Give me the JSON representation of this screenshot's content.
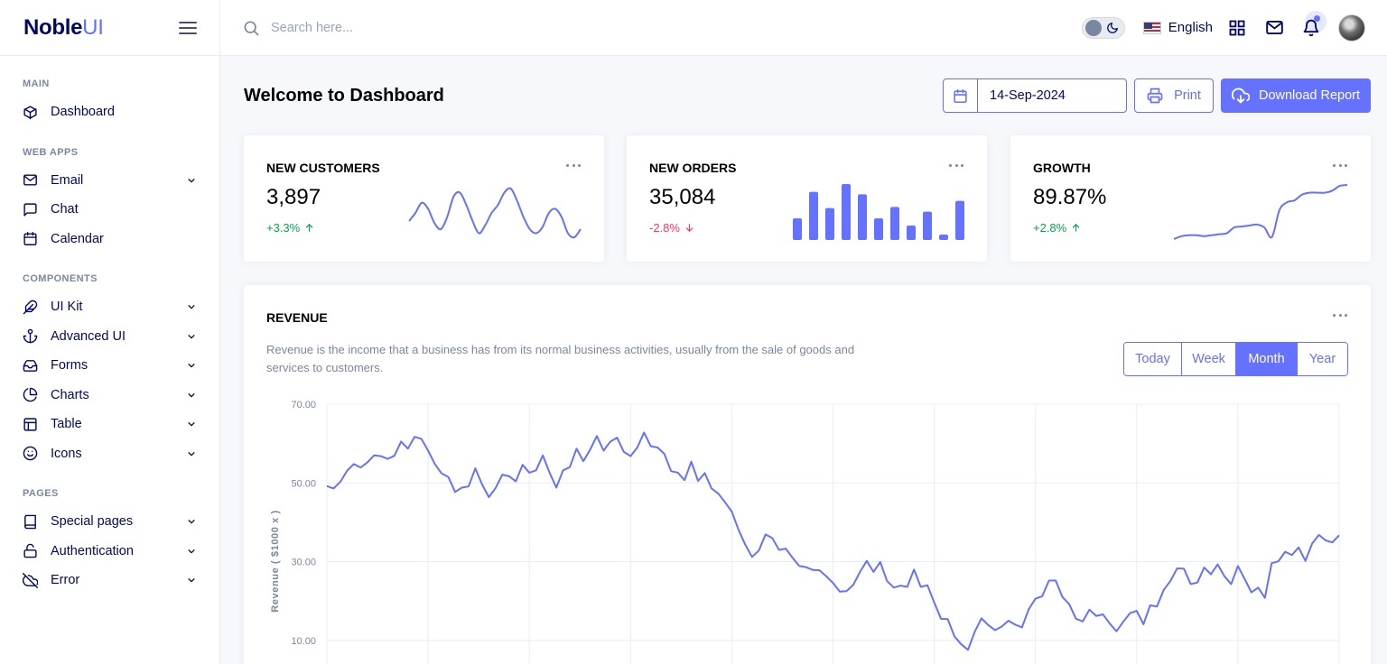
{
  "brand": {
    "name_main": "Noble",
    "name_accent": "UI"
  },
  "sidebar": {
    "categories": [
      {
        "label": "Main",
        "items": [
          {
            "label": "Dashboard",
            "icon": "box-icon",
            "expandable": false
          }
        ]
      },
      {
        "label": "Web Apps",
        "items": [
          {
            "label": "Email",
            "icon": "mail-icon",
            "expandable": true
          },
          {
            "label": "Chat",
            "icon": "chat-icon",
            "expandable": false
          },
          {
            "label": "Calendar",
            "icon": "calendar-icon",
            "expandable": false
          }
        ]
      },
      {
        "label": "Components",
        "items": [
          {
            "label": "UI Kit",
            "icon": "feather-icon",
            "expandable": true
          },
          {
            "label": "Advanced UI",
            "icon": "anchor-icon",
            "expandable": true
          },
          {
            "label": "Forms",
            "icon": "inbox-icon",
            "expandable": true
          },
          {
            "label": "Charts",
            "icon": "pie-chart-icon",
            "expandable": true
          },
          {
            "label": "Table",
            "icon": "layout-icon",
            "expandable": true
          },
          {
            "label": "Icons",
            "icon": "smile-icon",
            "expandable": true
          }
        ]
      },
      {
        "label": "Pages",
        "items": [
          {
            "label": "Special pages",
            "icon": "book-icon",
            "expandable": true
          },
          {
            "label": "Authentication",
            "icon": "unlock-icon",
            "expandable": true
          },
          {
            "label": "Error",
            "icon": "cloud-off-icon",
            "expandable": true
          }
        ]
      }
    ]
  },
  "topbar": {
    "search_placeholder": "Search here...",
    "language": "English",
    "colors": {
      "accent": "#6571ff"
    }
  },
  "header": {
    "title": "Welcome to Dashboard",
    "date_value": "14-Sep-2024",
    "print_label": "Print",
    "download_label": "Download Report"
  },
  "stats": [
    {
      "title": "New Customers",
      "value": "3,897",
      "change": "+3.3%",
      "trend": "up"
    },
    {
      "title": "New Orders",
      "value": "35,084",
      "change": "-2.8%",
      "trend": "down"
    },
    {
      "title": "Growth",
      "value": "89.87%",
      "change": "+2.8%",
      "trend": "up"
    }
  ],
  "revenue": {
    "title": "Revenue",
    "description": "Revenue is the income that a business has from its normal business activities, usually from the sale of goods and services to customers.",
    "periods": [
      "Today",
      "Week",
      "Month",
      "Year"
    ],
    "active_period": "Month"
  },
  "chart_data": [
    {
      "type": "line",
      "title": "",
      "values": [
        36,
        40,
        45,
        42,
        35,
        32,
        38,
        48,
        50,
        44,
        36,
        30,
        34,
        40,
        44,
        50,
        52,
        46,
        38,
        32,
        30,
        33,
        40,
        42,
        38,
        30,
        28,
        32
      ]
    },
    {
      "type": "bar",
      "title": "",
      "values": [
        36,
        80,
        53,
        93,
        76,
        36,
        55,
        24,
        47,
        9,
        65
      ]
    },
    {
      "type": "line",
      "title": "",
      "values": [
        10,
        13,
        14,
        14,
        13,
        14,
        15,
        16,
        22,
        23,
        24,
        25,
        22,
        12,
        40,
        48,
        50,
        56,
        58,
        58,
        58,
        60,
        65,
        66
      ]
    },
    {
      "type": "line",
      "title": "",
      "ylabel": "Revenue ( $1000 x )",
      "yticks": [
        "70.00",
        "50.00",
        "30.00",
        "10.00"
      ],
      "ylim": [
        4,
        70
      ],
      "values": [
        49.2,
        48.6,
        50.3,
        53.1,
        54.8,
        53.9,
        55.2,
        57.0,
        56.8,
        56.1,
        56.9,
        60.5,
        58.7,
        61.7,
        61.2,
        58.2,
        54.8,
        52.4,
        51.5,
        47.7,
        48.8,
        49.1,
        53.7,
        49.6,
        46.4,
        48.7,
        52.1,
        51.7,
        50.4,
        54.6,
        52.6,
        53.2,
        57.0,
        52.6,
        48.8,
        53.2,
        54.0,
        58.7,
        55.5,
        58.4,
        61.9,
        58.2,
        60.5,
        61.5,
        57.9,
        56.8,
        59.0,
        62.8,
        59.3,
        59.0,
        57.4,
        53.0,
        52.6,
        50.7,
        55.4,
        50.5,
        52.5,
        48.6,
        47.3,
        45.1,
        42.7,
        38.1,
        34.3,
        31.2,
        32.8,
        36.9,
        36.0,
        33.0,
        33.3,
        31.0,
        28.9,
        28.6,
        27.9,
        27.8,
        26.3,
        24.6,
        22.4,
        22.5,
        24.1,
        27.4,
        30.2,
        27.4,
        29.9,
        25.1,
        23.4,
        23.9,
        23.6,
        28.0,
        23.6,
        24.0,
        19.6,
        15.5,
        15.4,
        11.0,
        9.0,
        7.6,
        12.2,
        15.6,
        13.9,
        12.6,
        13.5,
        15.0,
        14.0,
        13.3,
        17.9,
        20.6,
        21.2,
        25.2,
        25.2,
        21.0,
        19.2,
        15.5,
        14.8,
        17.8,
        16.2,
        16.6,
        14.3,
        12.3,
        14.7,
        16.9,
        17.5,
        14.1,
        18.9,
        18.6,
        22.8,
        25.1,
        28.3,
        28.2,
        24.3,
        24.7,
        28.5,
        26.8,
        29.3,
        26.3,
        24.3,
        28.9,
        25.6,
        22.2,
        23.4,
        20.8,
        29.6,
        30.1,
        32.5,
        31.7,
        33.6,
        30.2,
        34.6,
        36.8,
        35.4,
        34.9,
        36.7
      ]
    }
  ]
}
